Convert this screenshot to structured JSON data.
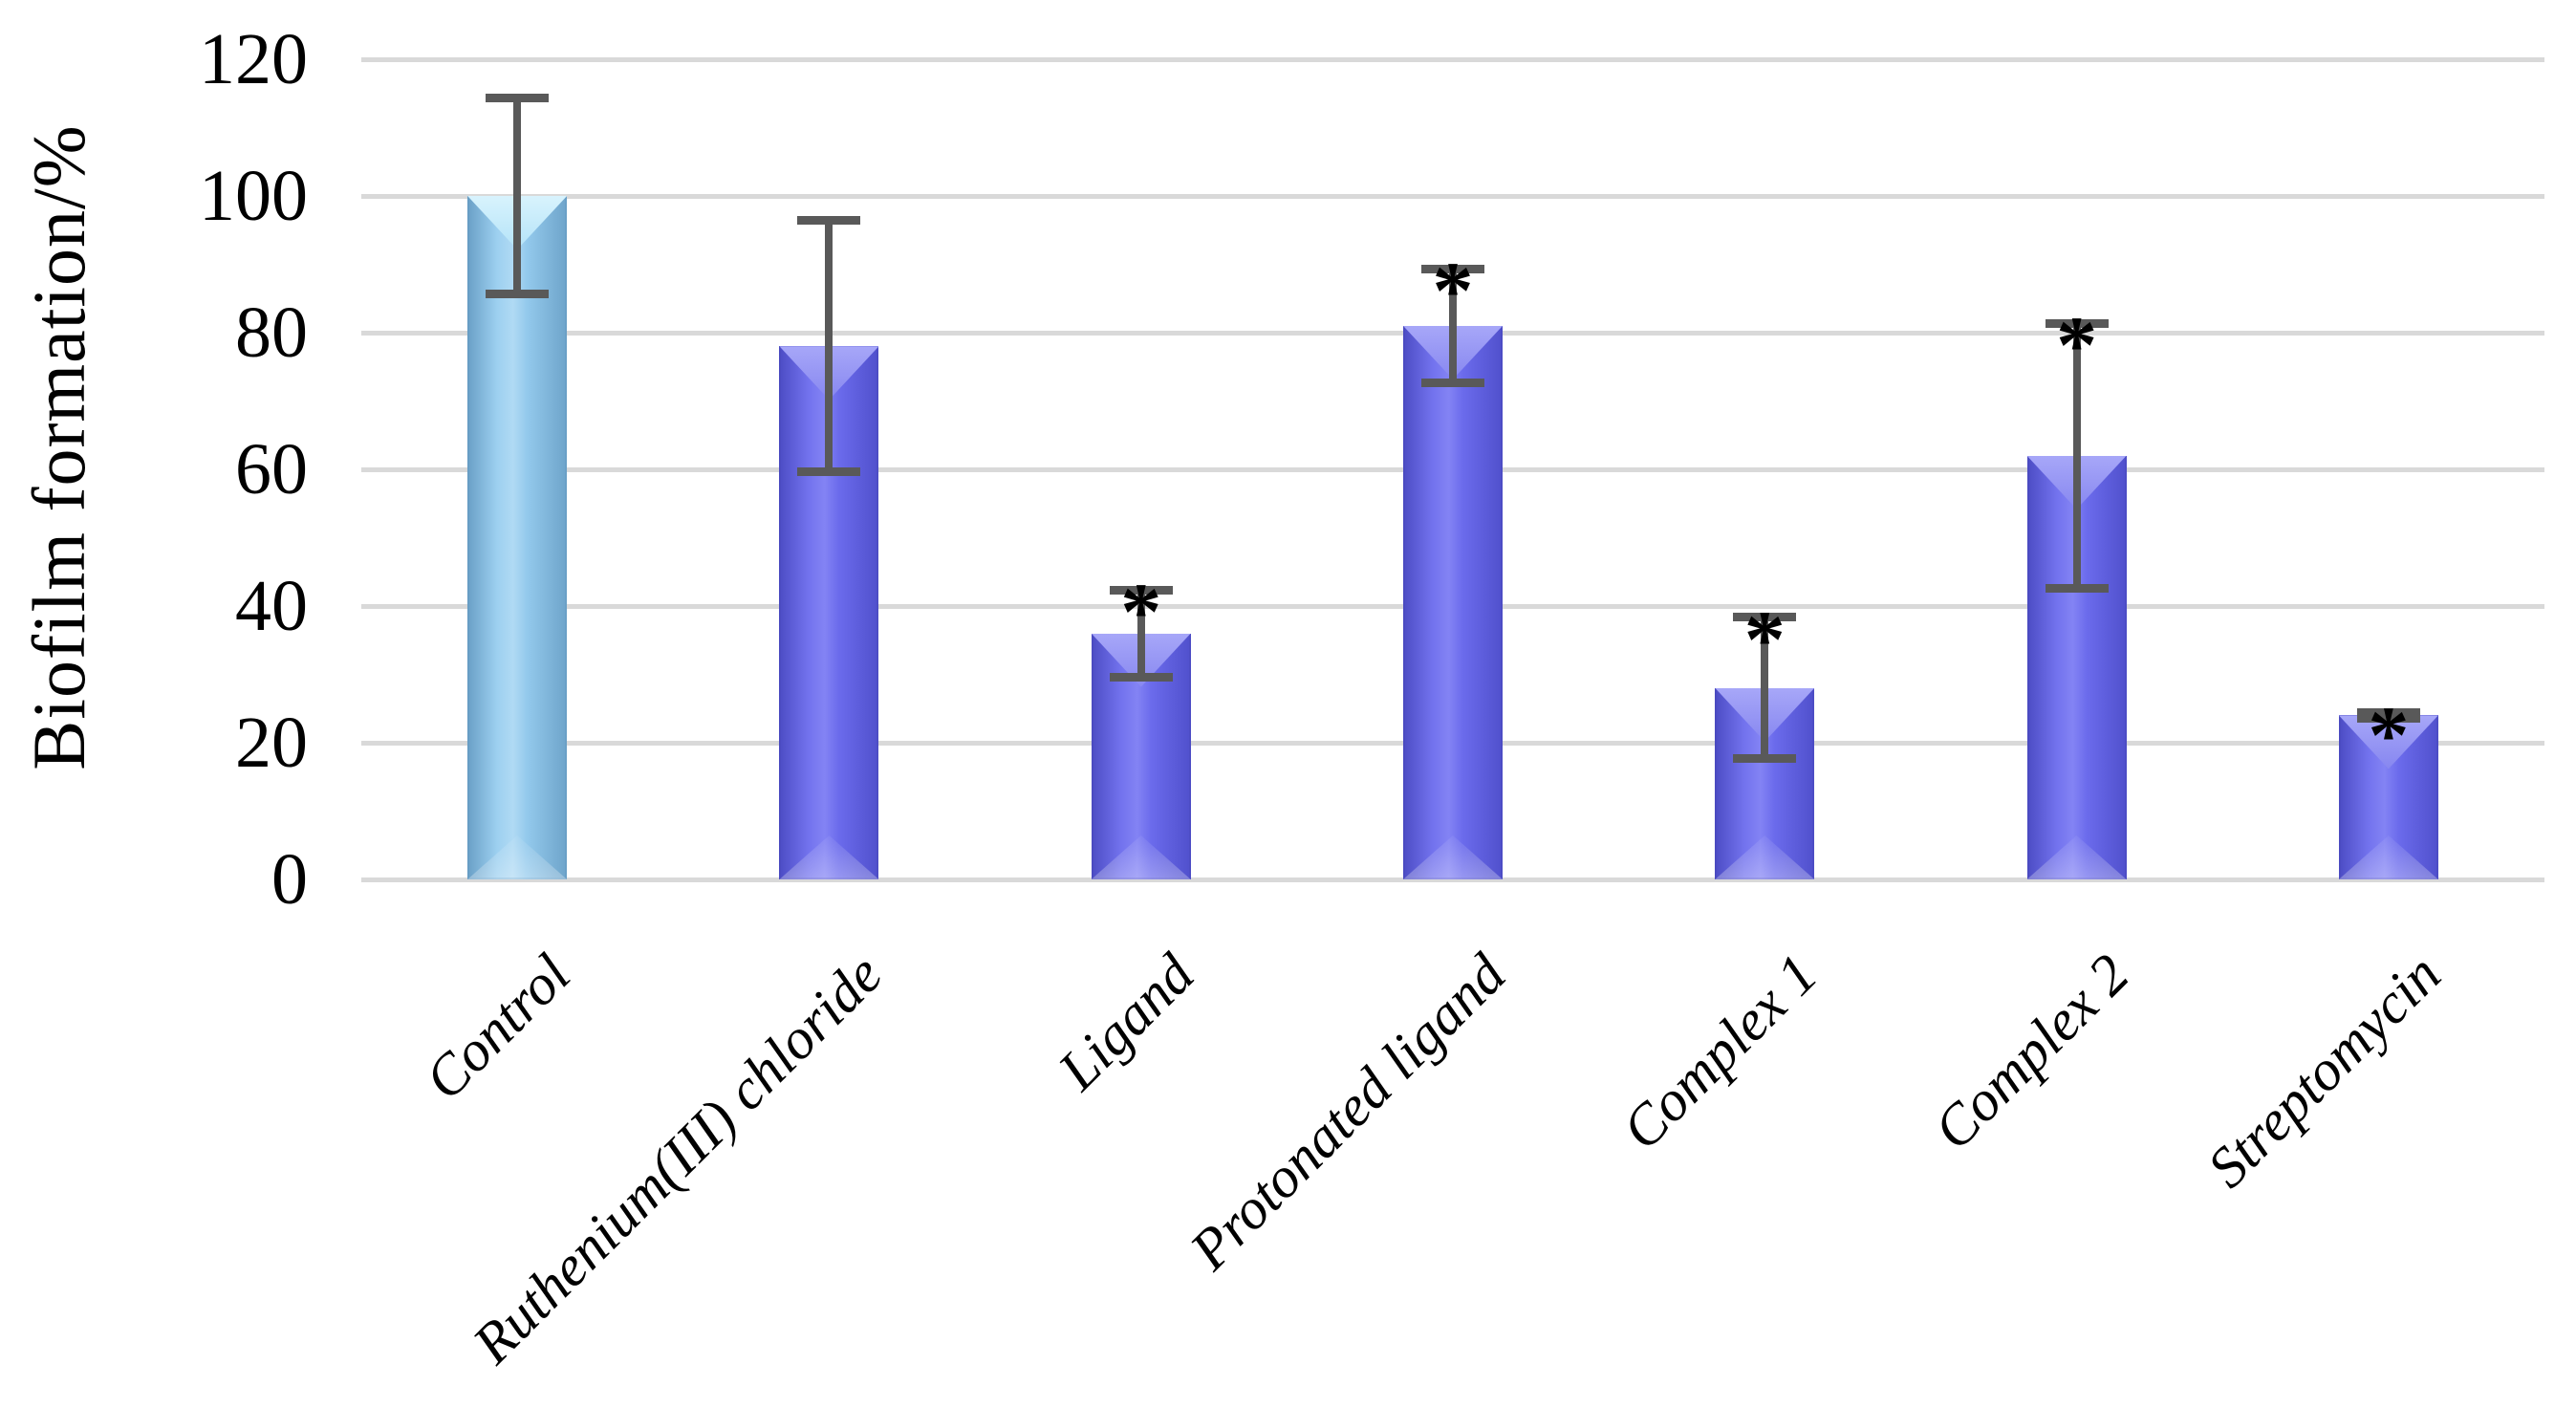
{
  "figure": {
    "background": "#ffffff"
  },
  "chart_data": {
    "type": "bar",
    "title": "",
    "ylabel": "Biofilm formation/%",
    "xlabel": "",
    "ylim": [
      0,
      120
    ],
    "ytick_values": [
      0,
      20,
      40,
      60,
      80,
      100,
      120
    ],
    "ytick_labels": [
      "0",
      "20",
      "40",
      "60",
      "80",
      "100",
      "120"
    ],
    "grid": "horizontal",
    "legend_position": "none",
    "categories": [
      "Control",
      "Ruthenium(III) chloride",
      "Ligand",
      "Protonated ligand",
      "Complex 1",
      "Complex 2",
      "Streptomycin"
    ],
    "values": [
      100,
      78,
      36,
      81,
      28,
      62,
      24
    ],
    "error_upper": [
      115,
      97,
      43,
      90,
      39,
      82,
      25
    ],
    "error_lower": [
      85,
      59,
      29,
      72,
      17,
      42,
      23
    ],
    "significance_marker": "*",
    "significant": [
      false,
      false,
      true,
      true,
      true,
      true,
      true
    ],
    "bar_styles": [
      "control",
      "treatment",
      "treatment",
      "treatment",
      "treatment",
      "treatment",
      "treatment"
    ],
    "colors": {
      "control_fill_stops": [
        "#699fc6",
        "#9dd0f0",
        "#b0daf4",
        "#93c9ec",
        "#6ea4ca"
      ],
      "control_bevel_stops": [
        "#d8f3fd",
        "#b4e3f8"
      ],
      "control_outline": "#6096bf",
      "treatment_fill_stops": [
        "#4c4cc4",
        "#7373ee",
        "#8383f4",
        "#6b6bec",
        "#5050cc"
      ],
      "treatment_bevel_stops": [
        "#a7a7f8",
        "#8787f0"
      ],
      "treatment_outline": "#4444b6",
      "error_bar": "#595959",
      "gridline": "#d9d9d9",
      "text": "#000000"
    }
  }
}
